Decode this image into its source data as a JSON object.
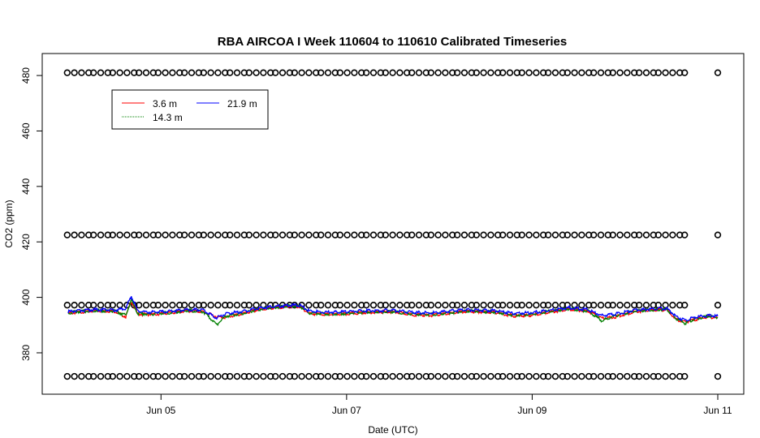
{
  "chart_data": {
    "type": "line",
    "title": "RBA AIRCOA I  Week 110604 to 110610  Calibrated Timeseries",
    "xlabel": "Date (UTC)",
    "ylabel": "CO2 (ppm)",
    "xlim": [
      4.0,
      11.0
    ],
    "ylim": [
      368,
      485
    ],
    "x_ticks": [
      {
        "value": 5,
        "label": "Jun 05"
      },
      {
        "value": 7,
        "label": "Jun 07"
      },
      {
        "value": 9,
        "label": "Jun 09"
      },
      {
        "value": 11,
        "label": "Jun 11"
      }
    ],
    "y_ticks": [
      380,
      400,
      420,
      440,
      460,
      480
    ],
    "grid": false,
    "legend": {
      "position": "top-left",
      "entries": [
        {
          "name": "3.6 m",
          "color": "#ff0000"
        },
        {
          "name": "14.3 m",
          "color": "#008000"
        },
        {
          "name": "21.9 m",
          "color": "#0000ff"
        }
      ]
    },
    "series": [
      {
        "name": "3.6 m",
        "color": "#ff0000",
        "points": [
          [
            4.0,
            394.2
          ],
          [
            4.1,
            394.6
          ],
          [
            4.3,
            395.2
          ],
          [
            4.5,
            395.0
          ],
          [
            4.62,
            393.0
          ],
          [
            4.68,
            398.6
          ],
          [
            4.75,
            394.0
          ],
          [
            4.9,
            393.8
          ],
          [
            5.1,
            394.4
          ],
          [
            5.3,
            395.2
          ],
          [
            5.45,
            394.8
          ],
          [
            5.6,
            393.0
          ],
          [
            5.7,
            392.8
          ],
          [
            5.9,
            394.2
          ],
          [
            6.0,
            395.2
          ],
          [
            6.2,
            396.2
          ],
          [
            6.4,
            396.8
          ],
          [
            6.5,
            396.6
          ],
          [
            6.6,
            394.2
          ],
          [
            6.8,
            393.8
          ],
          [
            7.0,
            394.0
          ],
          [
            7.2,
            394.6
          ],
          [
            7.5,
            394.8
          ],
          [
            7.7,
            393.8
          ],
          [
            7.9,
            393.5
          ],
          [
            8.1,
            394.2
          ],
          [
            8.3,
            395.0
          ],
          [
            8.6,
            394.6
          ],
          [
            8.8,
            393.3
          ],
          [
            9.0,
            393.6
          ],
          [
            9.2,
            394.8
          ],
          [
            9.4,
            395.8
          ],
          [
            9.6,
            395.0
          ],
          [
            9.75,
            392.4
          ],
          [
            9.9,
            393.0
          ],
          [
            10.1,
            394.8
          ],
          [
            10.3,
            395.4
          ],
          [
            10.45,
            395.6
          ],
          [
            10.55,
            392.0
          ],
          [
            10.65,
            391.0
          ],
          [
            10.75,
            392.0
          ],
          [
            10.9,
            393.0
          ],
          [
            11.0,
            392.6
          ]
        ]
      },
      {
        "name": "14.3 m",
        "color": "#008000",
        "points": [
          [
            4.0,
            394.4
          ],
          [
            4.1,
            394.8
          ],
          [
            4.3,
            395.3
          ],
          [
            4.5,
            395.0
          ],
          [
            4.62,
            393.6
          ],
          [
            4.68,
            399.0
          ],
          [
            4.75,
            394.2
          ],
          [
            4.9,
            394.0
          ],
          [
            5.1,
            394.5
          ],
          [
            5.3,
            395.3
          ],
          [
            5.45,
            394.9
          ],
          [
            5.6,
            390.2
          ],
          [
            5.7,
            393.2
          ],
          [
            5.9,
            394.4
          ],
          [
            6.0,
            395.3
          ],
          [
            6.2,
            396.3
          ],
          [
            6.4,
            397.0
          ],
          [
            6.5,
            396.8
          ],
          [
            6.6,
            394.4
          ],
          [
            6.8,
            394.0
          ],
          [
            7.0,
            394.2
          ],
          [
            7.2,
            394.7
          ],
          [
            7.5,
            394.9
          ],
          [
            7.7,
            394.0
          ],
          [
            7.9,
            393.8
          ],
          [
            8.1,
            394.4
          ],
          [
            8.3,
            395.1
          ],
          [
            8.6,
            394.7
          ],
          [
            8.8,
            393.6
          ],
          [
            9.0,
            393.9
          ],
          [
            9.2,
            395.0
          ],
          [
            9.4,
            395.9
          ],
          [
            9.6,
            395.1
          ],
          [
            9.75,
            391.6
          ],
          [
            9.9,
            393.4
          ],
          [
            10.1,
            395.0
          ],
          [
            10.3,
            395.5
          ],
          [
            10.45,
            395.8
          ],
          [
            10.55,
            392.4
          ],
          [
            10.65,
            390.6
          ],
          [
            10.75,
            392.3
          ],
          [
            10.9,
            393.2
          ],
          [
            11.0,
            392.8
          ]
        ]
      },
      {
        "name": "21.9 m",
        "color": "#0000ff",
        "points": [
          [
            4.0,
            394.8
          ],
          [
            4.1,
            395.2
          ],
          [
            4.3,
            395.6
          ],
          [
            4.5,
            395.4
          ],
          [
            4.62,
            396.0
          ],
          [
            4.68,
            400.4
          ],
          [
            4.75,
            395.0
          ],
          [
            4.9,
            394.6
          ],
          [
            5.1,
            395.0
          ],
          [
            5.3,
            395.6
          ],
          [
            5.45,
            395.4
          ],
          [
            5.6,
            392.6
          ],
          [
            5.7,
            394.2
          ],
          [
            5.9,
            395.0
          ],
          [
            6.0,
            395.8
          ],
          [
            6.2,
            396.6
          ],
          [
            6.4,
            397.2
          ],
          [
            6.5,
            397.0
          ],
          [
            6.6,
            395.0
          ],
          [
            6.8,
            394.6
          ],
          [
            7.0,
            394.8
          ],
          [
            7.2,
            395.2
          ],
          [
            7.5,
            395.3
          ],
          [
            7.7,
            394.6
          ],
          [
            7.9,
            394.4
          ],
          [
            8.1,
            395.0
          ],
          [
            8.3,
            395.5
          ],
          [
            8.6,
            395.2
          ],
          [
            8.8,
            394.2
          ],
          [
            9.0,
            394.5
          ],
          [
            9.2,
            395.4
          ],
          [
            9.4,
            396.2
          ],
          [
            9.6,
            395.6
          ],
          [
            9.75,
            393.4
          ],
          [
            9.9,
            394.0
          ],
          [
            10.1,
            395.4
          ],
          [
            10.3,
            395.8
          ],
          [
            10.45,
            396.0
          ],
          [
            10.55,
            393.2
          ],
          [
            10.65,
            391.6
          ],
          [
            10.75,
            392.8
          ],
          [
            10.9,
            393.4
          ],
          [
            11.0,
            393.2
          ]
        ]
      }
    ],
    "calibration_markers": {
      "marker": "open-circle",
      "y_levels": [
        481,
        422.5,
        397.2,
        371.5
      ],
      "x_start": 4.0,
      "x_end": 10.7,
      "spacing": 0.07,
      "extra_x": 11.0
    }
  }
}
